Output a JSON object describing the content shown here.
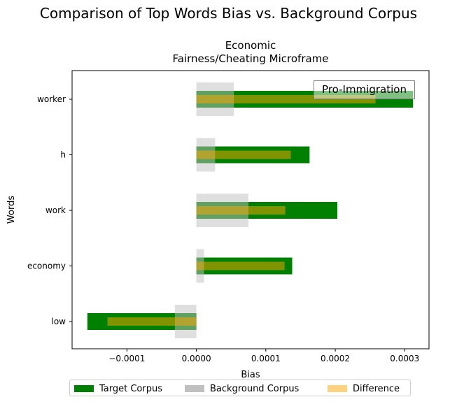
{
  "suptitle": "Comparison of Top Words Bias vs. Background Corpus",
  "chart_data": {
    "type": "bar",
    "orientation": "horizontal",
    "title": "Economic\nFairness/Cheating Microframe",
    "title_lines": [
      "Economic",
      "Fairness/Cheating Microframe"
    ],
    "xlabel": "Bias",
    "ylabel": "Words",
    "categories": [
      "worker",
      "h",
      "work",
      "economy",
      "low"
    ],
    "xlim": [
      -0.000179,
      0.000335
    ],
    "xticks": [
      -0.0001,
      0.0,
      0.0001,
      0.0002,
      0.0003
    ],
    "xtick_labels": [
      "−0.0001",
      "0.0000",
      "0.0001",
      "0.0002",
      "0.0003"
    ],
    "series": [
      {
        "name": "Target Corpus",
        "color": "#008000",
        "values": [
          0.000312,
          0.000163,
          0.000203,
          0.000138,
          -0.000157
        ]
      },
      {
        "name": "Background Corpus",
        "color": "#c0c0c0",
        "values": [
          5.4e-05,
          2.7e-05,
          7.5e-05,
          1.1e-05,
          -3.1e-05
        ]
      },
      {
        "name": "Difference",
        "color": "#ffa500",
        "values": [
          0.000258,
          0.000136,
          0.000128,
          0.000127,
          -0.000128
        ]
      }
    ],
    "annotation": "Pro-Immigration",
    "legend_position": "bottom-center",
    "grid": false
  }
}
